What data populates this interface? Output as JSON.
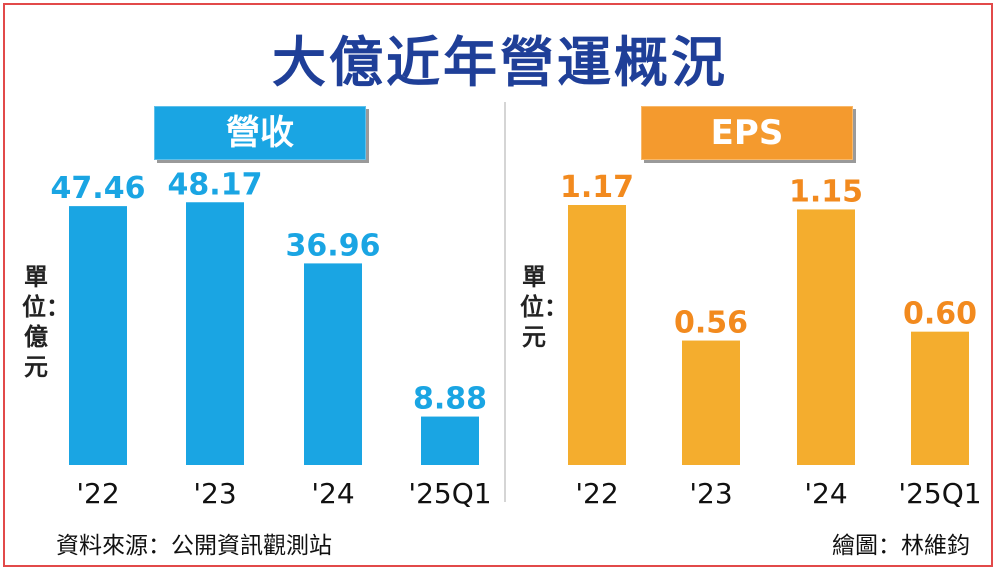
{
  "title": "大億近年營運概況",
  "source": "資料來源：公開資訊觀測站",
  "credit": "繪圖：林維鈞",
  "colors": {
    "title": "#1f3f98",
    "revenue": "#1aa5e3",
    "eps": "#f4ad2e",
    "eps_label": "#f28a1e",
    "border": "#e24a4a"
  },
  "chart_data": [
    {
      "type": "bar",
      "title": "營收",
      "unit_label": "單位：億元",
      "categories": [
        "'22",
        "'23",
        "'24",
        "'25Q1"
      ],
      "values": [
        47.46,
        48.17,
        36.96,
        8.88
      ],
      "value_labels": [
        "47.46",
        "48.17",
        "36.96",
        "8.88"
      ],
      "ylim": [
        0,
        55
      ],
      "grid": false
    },
    {
      "type": "bar",
      "title": "EPS",
      "unit_label": "單位：元",
      "categories": [
        "'22",
        "'23",
        "'24",
        "'25Q1"
      ],
      "values": [
        1.17,
        0.56,
        1.15,
        0.6
      ],
      "value_labels": [
        "1.17",
        "0.56",
        "1.15",
        "0.60"
      ],
      "ylim": [
        0,
        1.35
      ],
      "grid": false
    }
  ]
}
